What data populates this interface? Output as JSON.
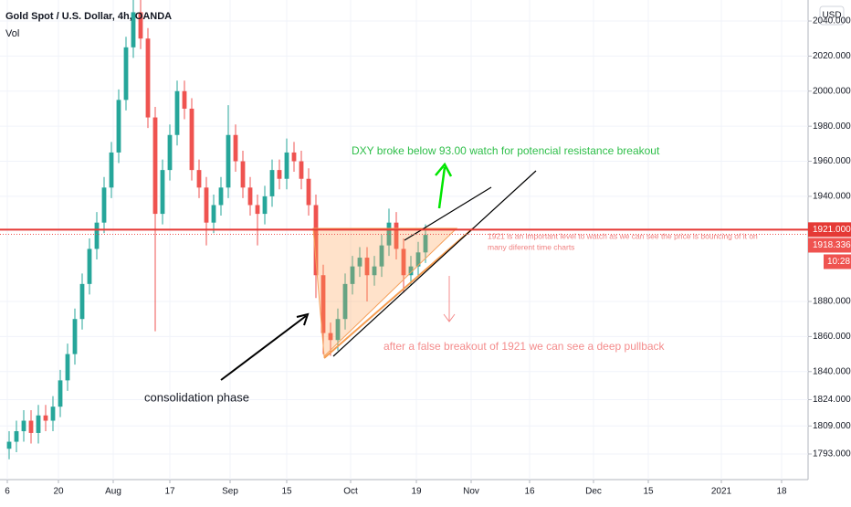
{
  "chart_data": {
    "type": "candlestick",
    "title": "Gold Spot / U.S. Dollar, 4h, OANDA",
    "subtitle": "Vol",
    "currency_button": "USD",
    "up_color": "#26a69a",
    "down_color": "#ef5350",
    "x": [
      0.5,
      2.5,
      4.5,
      6.5,
      8.5,
      10.5,
      12.5,
      14.5,
      16.5,
      18.5,
      20.5,
      22.5,
      24.5,
      26.5,
      28.5,
      30.5,
      32.5,
      34.5,
      36.5,
      38.5,
      40.5,
      42.5,
      44.5,
      46.5,
      48.5,
      50.5,
      52.5,
      54.5,
      56.5,
      58.5,
      60.5,
      62.5,
      64.5,
      66.5,
      68.5,
      70.5,
      72.5,
      74.5,
      76.5,
      78.5,
      80.5,
      82.5,
      84.5,
      86.5,
      88.5,
      90.5,
      92.5,
      94.5,
      96.5,
      98.5,
      100.5,
      102.5,
      104.5,
      106.5,
      108.5,
      110.5,
      112.5,
      114.5
    ],
    "open": [
      1796,
      1800,
      1806,
      1812,
      1805,
      1815,
      1812,
      1820,
      1835,
      1850,
      1870,
      1890,
      1910,
      1925,
      1945,
      1965,
      1995,
      2025,
      2045,
      2030,
      1985,
      1930,
      1955,
      1975,
      2000,
      1990,
      1955,
      1945,
      1925,
      1935,
      1945,
      1975,
      1960,
      1945,
      1935,
      1930,
      1940,
      1955,
      1950,
      1965,
      1960,
      1950,
      1935,
      1895,
      1862,
      1858,
      1870,
      1890,
      1900,
      1905,
      1895,
      1900,
      1912,
      1925,
      1910,
      1895,
      1900,
      1908
    ],
    "high": [
      1806,
      1812,
      1818,
      1818,
      1821,
      1821,
      1826,
      1841,
      1856,
      1876,
      1896,
      1916,
      1931,
      1951,
      1971,
      2001,
      2031,
      2075,
      2060,
      2036,
      1991,
      1961,
      1981,
      2006,
      2006,
      1996,
      1961,
      1951,
      1941,
      1951,
      1992,
      1981,
      1966,
      1951,
      1941,
      1946,
      1961,
      1961,
      1973,
      1971,
      1966,
      1956,
      1941,
      1901,
      1868,
      1876,
      1896,
      1906,
      1911,
      1911,
      1906,
      1918,
      1933,
      1931,
      1916,
      1906,
      1914,
      1924
    ],
    "low": [
      1790,
      1794,
      1800,
      1799,
      1799,
      1806,
      1806,
      1814,
      1829,
      1844,
      1864,
      1884,
      1904,
      1919,
      1939,
      1959,
      1989,
      2019,
      2024,
      1979,
      1863,
      1924,
      1949,
      1969,
      1984,
      1949,
      1939,
      1912,
      1919,
      1929,
      1939,
      1954,
      1939,
      1929,
      1912,
      1924,
      1934,
      1944,
      1944,
      1954,
      1944,
      1929,
      1882,
      1850,
      1849,
      1852,
      1864,
      1884,
      1894,
      1880,
      1889,
      1894,
      1906,
      1904,
      1885,
      1889,
      1894,
      1902
    ],
    "close": [
      1800,
      1806,
      1812,
      1805,
      1815,
      1812,
      1820,
      1835,
      1850,
      1870,
      1890,
      1910,
      1925,
      1945,
      1965,
      1995,
      2025,
      2045,
      2030,
      1985,
      1930,
      1955,
      1975,
      2000,
      1990,
      1955,
      1945,
      1925,
      1935,
      1945,
      1975,
      1960,
      1945,
      1935,
      1930,
      1940,
      1955,
      1950,
      1965,
      1960,
      1950,
      1935,
      1895,
      1862,
      1858,
      1870,
      1890,
      1900,
      1905,
      1895,
      1900,
      1912,
      1925,
      1910,
      1895,
      1900,
      1908,
      1918
    ],
    "xlim": [
      -2,
      219.25
    ],
    "xticks": [
      {
        "value": 0,
        "label": "6"
      },
      {
        "value": 14,
        "label": "20"
      },
      {
        "value": 29,
        "label": "Aug"
      },
      {
        "value": 44.5,
        "label": "17"
      },
      {
        "value": 61,
        "label": "Sep"
      },
      {
        "value": 76.5,
        "label": "15"
      },
      {
        "value": 94,
        "label": "Oct"
      },
      {
        "value": 112,
        "label": "19"
      },
      {
        "value": 127,
        "label": "Nov"
      },
      {
        "value": 143,
        "label": "16"
      },
      {
        "value": 160.5,
        "label": "Dec"
      },
      {
        "value": 175.5,
        "label": "15"
      },
      {
        "value": 195.5,
        "label": "2021"
      },
      {
        "value": 212,
        "label": "18"
      }
    ],
    "ylim": [
      1781,
      2052
    ],
    "yticks": [
      {
        "value": 1793,
        "label": "1793.000"
      },
      {
        "value": 1809,
        "label": "1809.000"
      },
      {
        "value": 1824,
        "label": "1824.000"
      },
      {
        "value": 1840,
        "label": "1840.000"
      },
      {
        "value": 1860,
        "label": "1860.000"
      },
      {
        "value": 1880,
        "label": "1880.000"
      },
      {
        "value": 1940,
        "label": "1940.000"
      },
      {
        "value": 1960,
        "label": "1960.000"
      },
      {
        "value": 1980,
        "label": "1980.000"
      },
      {
        "value": 2000,
        "label": "2000.000"
      },
      {
        "value": 2020,
        "label": "2020.000"
      },
      {
        "value": 2040,
        "label": "2040.000"
      }
    ],
    "level": {
      "value": 1921,
      "label": "1921.000",
      "color": "#e53935"
    },
    "last_price": {
      "value": 1918.336,
      "label": "1918.336",
      "countdown": "10:28",
      "color": "#ef5350"
    },
    "annotations": [
      "DXY broke below 93.00 watch for potencial resistance breakout",
      "1921 is an important level to watch as we can see the price is bouncing of it on",
      "many diferent time charts",
      "after a false breakout of 1921 we can see a deep pullback",
      "consolidation phase"
    ]
  }
}
